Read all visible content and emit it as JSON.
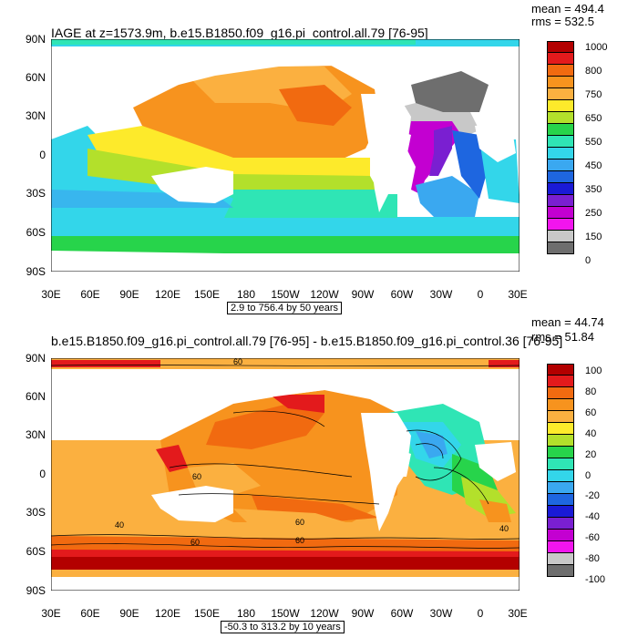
{
  "top": {
    "title": "IAGE at z=1573.9m, b.e15.B1850.f09_g16.pi_control.all.79 [76-95]",
    "mean": "mean = 494.4",
    "rms": "rms = 532.5",
    "info": "2.9 to 756.4 by 50 years",
    "colorbar_labels": [
      "1000",
      "800",
      "750",
      "650",
      "550",
      "450",
      "350",
      "250",
      "150",
      "0"
    ],
    "colorbar_colors": [
      "#b30000",
      "#e31a1c",
      "#f16a10",
      "#f7931e",
      "#fbb040",
      "#fdea2b",
      "#b3e02b",
      "#27d44b",
      "#2fe5b5",
      "#33d6ea",
      "#3aa8f0",
      "#1e66e0",
      "#1a1ad6",
      "#7a1fd1",
      "#c300d1",
      "#f215ee",
      "#c8c8c8",
      "#6e6e6e"
    ]
  },
  "bottom": {
    "title": "b.e15.B1850.f09_g16.pi_control.all.79 [76-95] - b.e15.B1850.f09_g16.pi_control.36 [76-95]",
    "mean": "mean = 44.74",
    "rms": "rms = 51.84",
    "info": "-50.3 to 313.2 by 10 years",
    "colorbar_labels": [
      "100",
      "80",
      "60",
      "40",
      "20",
      "0",
      "-20",
      "-40",
      "-60",
      "-80",
      "-100"
    ],
    "colorbar_colors": [
      "#b30000",
      "#e31a1c",
      "#f16a10",
      "#f7931e",
      "#fbb040",
      "#fdea2b",
      "#b3e02b",
      "#27d44b",
      "#2fe5b5",
      "#33d6ea",
      "#3aa8f0",
      "#1e66e0",
      "#1a1ad6",
      "#7a1fd1",
      "#c300d1",
      "#f215ee",
      "#c8c8c8",
      "#6e6e6e"
    ],
    "contour_labels": [
      "60",
      "60",
      "40",
      "60",
      "60",
      "40",
      "60"
    ]
  },
  "axes": {
    "lat_labels": [
      "90N",
      "60N",
      "30N",
      "0",
      "30S",
      "60S",
      "90S"
    ],
    "lon_labels": [
      "30E",
      "60E",
      "90E",
      "120E",
      "150E",
      "180",
      "150W",
      "120W",
      "90W",
      "60W",
      "30W",
      "0",
      "30E"
    ]
  }
}
